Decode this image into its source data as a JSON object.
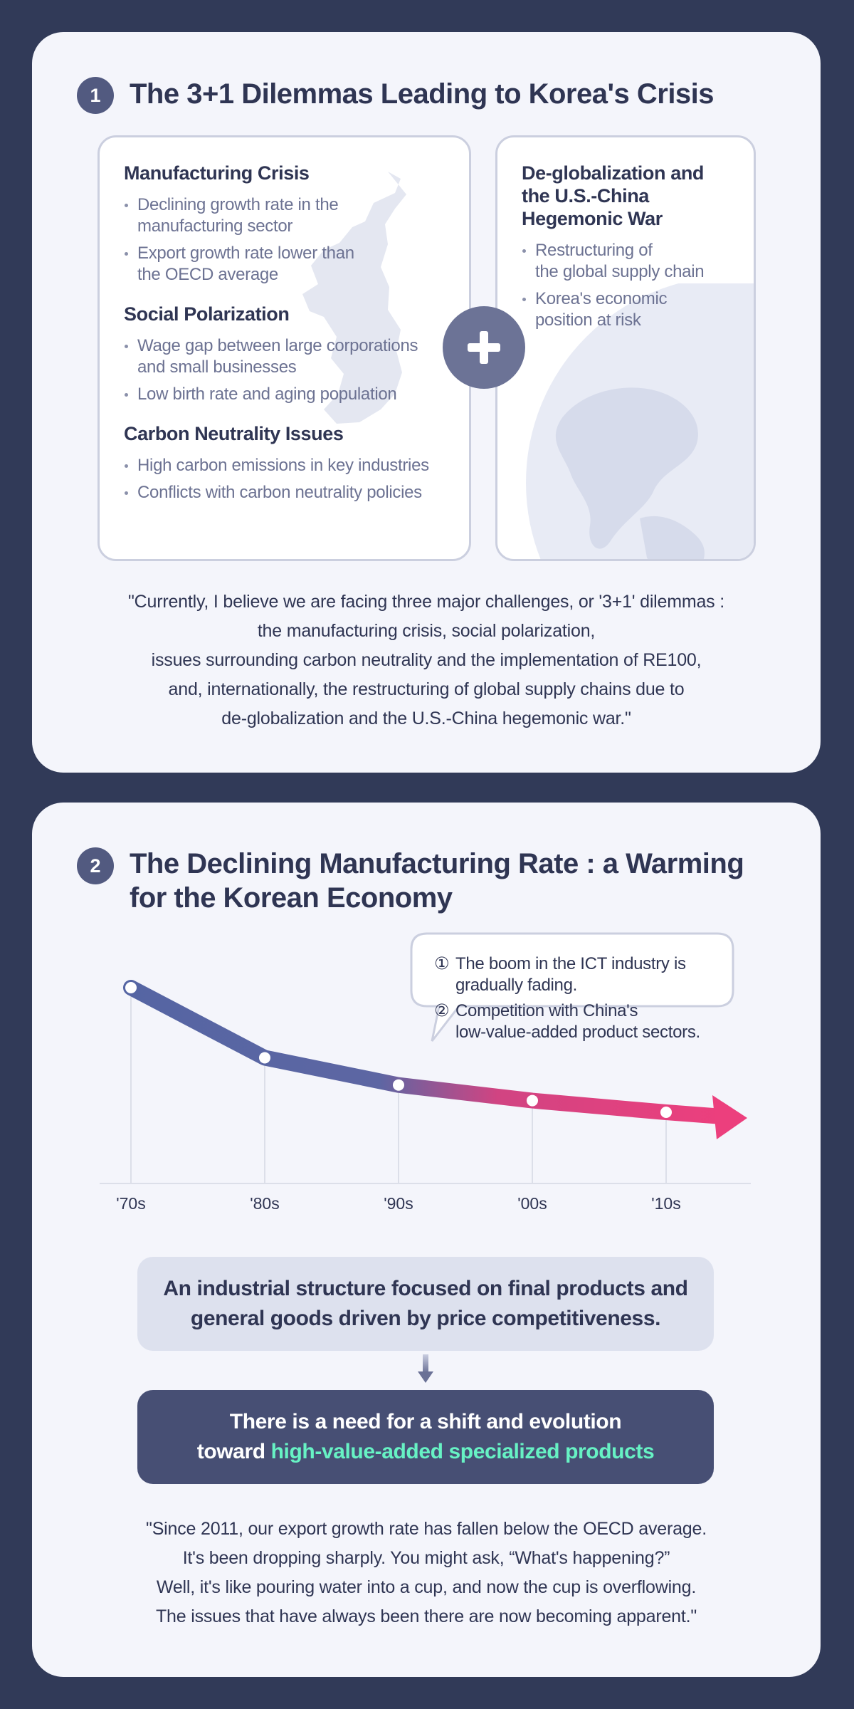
{
  "section1": {
    "number": "1",
    "title": "The 3+1 Dilemmas Leading to Korea's Crisis",
    "left_box": {
      "categories": [
        {
          "title": "Manufacturing Crisis",
          "items": [
            "Declining growth rate in the\nmanufacturing sector",
            "Export growth rate lower than\nthe OECD average"
          ]
        },
        {
          "title": "Social Polarization",
          "items": [
            "Wage gap between large corporations\nand small businesses",
            "Low birth rate and aging population"
          ]
        },
        {
          "title": "Carbon Neutrality Issues",
          "items": [
            "High carbon emissions in key industries",
            "Conflicts with carbon neutrality policies"
          ]
        }
      ]
    },
    "plus_icon": "plus-icon",
    "right_box": {
      "title": "De-globalization and\nthe U.S.-China\nHegemonic War",
      "items": [
        "Restructuring of\nthe global supply chain",
        "Korea's economic\nposition at risk"
      ]
    },
    "quote": "\"Currently, I believe we are facing three major challenges, or '3+1' dilemmas :\nthe manufacturing crisis, social polarization,\nissues surrounding carbon neutrality and the implementation of RE100,\nand, internationally, the restructuring of global supply chains due to\nde-globalization and the U.S.-China hegemonic war.\""
  },
  "section2": {
    "number": "2",
    "title": "The Declining Manufacturing Rate : a Warming\nfor the Korean Economy",
    "chart": {
      "decades": [
        "'70s",
        "'80s",
        "'90s",
        "'00s",
        "'10s"
      ],
      "trend_levels": [
        1.0,
        0.64,
        0.5,
        0.42,
        0.36
      ],
      "callout_items": [
        {
          "num": "①",
          "text": "The boom in the ICT industry is\ngradually fading."
        },
        {
          "num": "②",
          "text": "Competition with China's\nlow-value-added product sectors."
        }
      ]
    },
    "info_light": "An industrial structure focused on final products and\ngeneral goods driven by price competitiveness.",
    "info_dark_prefix": "There is a need for a shift and evolution\ntoward ",
    "info_dark_highlight": "high-value-added specialized products",
    "quote": "\"Since 2011, our export growth rate has fallen below the OECD average.\nIt's been dropping sharply. You might ask, “What's happening?”\nWell, it's like pouring water into a cup, and now the cup is overflowing.\nThe issues that have always been there are now becoming apparent.\""
  },
  "colors": {
    "background": "#313a58",
    "card": "#f4f5fb",
    "accent_dark": "#525a80",
    "trend_start": "#5565a3",
    "trend_end": "#ec3f7d",
    "highlight": "#67f2c4"
  }
}
